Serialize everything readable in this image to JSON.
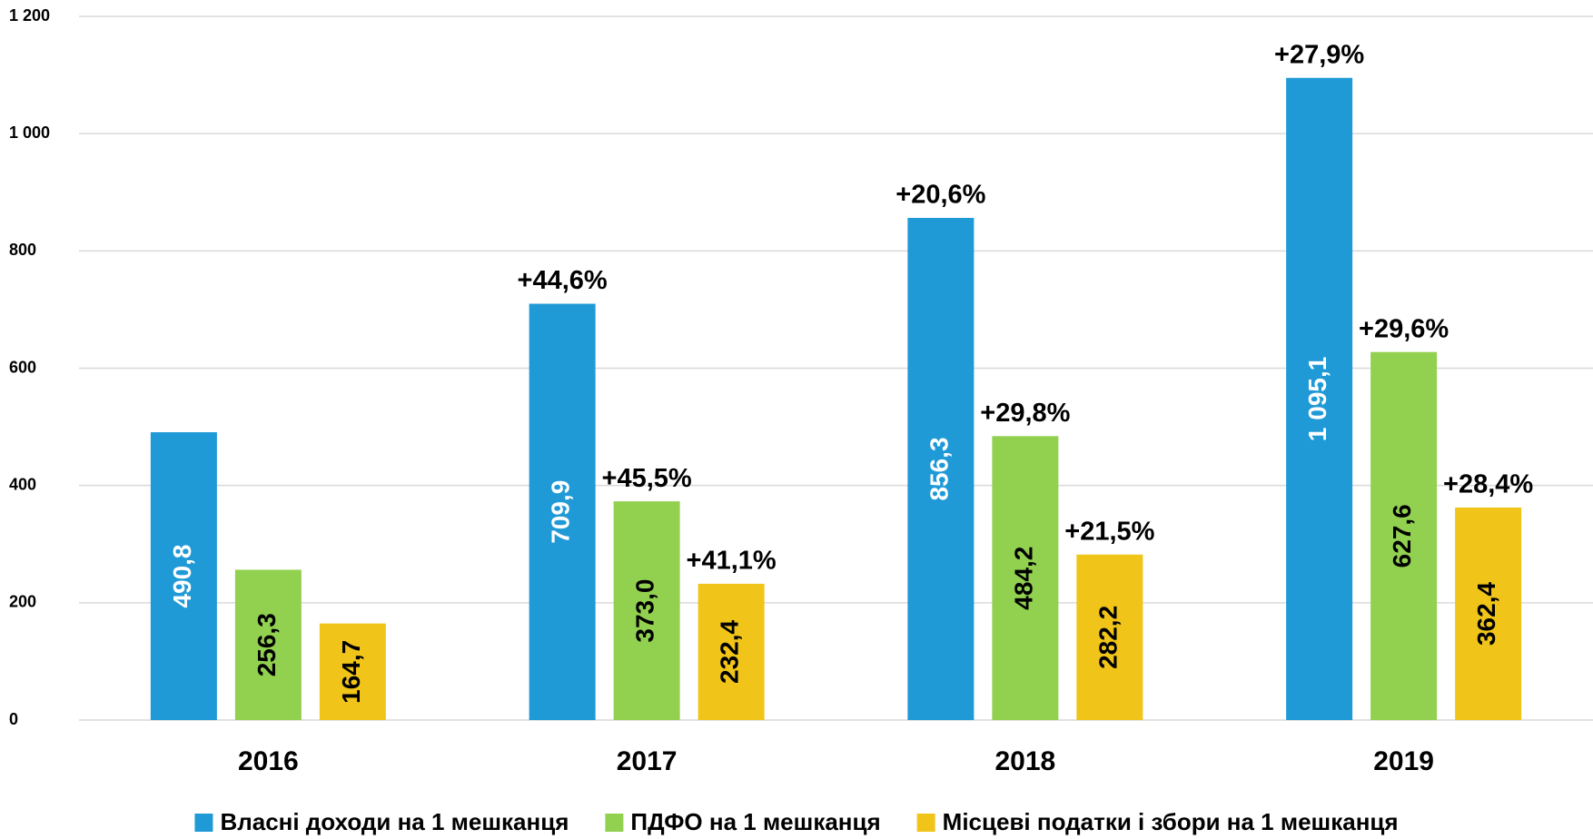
{
  "chart_data": {
    "type": "bar",
    "categories": [
      "2016",
      "2017",
      "2018",
      "2019"
    ],
    "ylim": [
      0,
      1200
    ],
    "yticks": [
      0,
      200,
      400,
      600,
      800,
      {
        "value": 1000,
        "label": "1 000"
      },
      {
        "value": 1200,
        "label": "1 200"
      }
    ],
    "grid": true,
    "legend": "bottom",
    "series": [
      {
        "name": "Власні доходи на 1 мешканця",
        "color": "#1f9ad6",
        "label_color": "#ffffff",
        "values": [
          490.8,
          709.9,
          856.3,
          1095.1
        ],
        "value_labels": [
          "490,8",
          "709,9",
          "856,3",
          "1 095,1"
        ],
        "annotations": [
          null,
          "+44,6%",
          "+20,6%",
          "+27,9%"
        ]
      },
      {
        "name": "ПДФО на 1 мешканця",
        "color": "#92d050",
        "label_color": "#000000",
        "values": [
          256.3,
          373.0,
          484.2,
          627.6
        ],
        "value_labels": [
          "256,3",
          "373,0",
          "484,2",
          "627,6"
        ],
        "annotations": [
          null,
          "+45,5%",
          "+29,8%",
          "+29,6%"
        ]
      },
      {
        "name": "Місцеві податки і збори на 1 мешканця",
        "color": "#f0c419",
        "label_color": "#000000",
        "values": [
          164.7,
          232.4,
          282.2,
          362.4
        ],
        "value_labels": [
          "164,7",
          "232,4",
          "282,2",
          "362,4"
        ],
        "annotations": [
          null,
          "+41,1%",
          "+21,5%",
          "+28,4%"
        ]
      }
    ]
  }
}
